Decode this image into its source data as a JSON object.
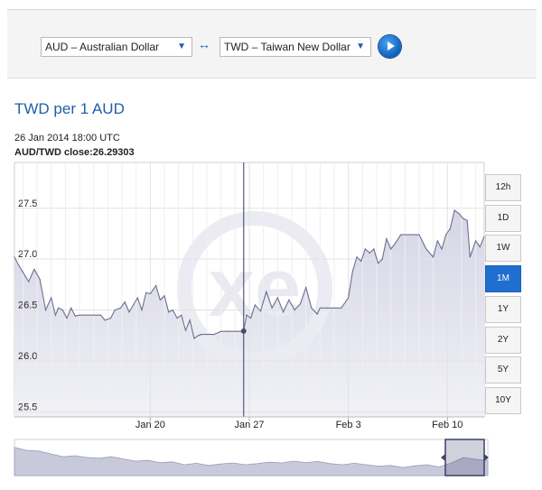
{
  "converter": {
    "from_currency": "AUD – Australian Dollar",
    "to_currency": "TWD – Taiwan New Dollar",
    "swap_symbol": "↔",
    "dropdown_arrow": "▼"
  },
  "page_title": "TWD per 1 AUD",
  "tooltip": {
    "timestamp": "26 Jan 2014 18:00 UTC",
    "pair_label": "AUD/TWD close:",
    "close_value": "26.29303"
  },
  "range_buttons": [
    {
      "label": "12h",
      "active": false
    },
    {
      "label": "1D",
      "active": false
    },
    {
      "label": "1W",
      "active": false
    },
    {
      "label": "1M",
      "active": true
    },
    {
      "label": "1Y",
      "active": false
    },
    {
      "label": "2Y",
      "active": false
    },
    {
      "label": "5Y",
      "active": false
    },
    {
      "label": "10Y",
      "active": false
    }
  ],
  "colors": {
    "accent": "#1f5fa8",
    "line": "#6c6f8c",
    "fill": "#dcdcea",
    "active_button": "#1f6fd0"
  },
  "chart_data": {
    "type": "area",
    "ylim": [
      25.45,
      27.95
    ],
    "y_ticks": [
      27.5,
      27.0,
      26.5,
      26.0,
      25.5
    ],
    "y_tick_labels": [
      "27.5",
      "27.0",
      "26.5",
      "26.0",
      "25.5"
    ],
    "x_tick_labels": [
      "Jan 20",
      "Jan 27",
      "Feb 3",
      "Feb 10"
    ],
    "x_tick_days": [
      0,
      7,
      14,
      21
    ],
    "xlim_days": [
      -9.6,
      23.6
    ],
    "crosshair_day": 6.6,
    "grid": true,
    "series": [
      {
        "x_days": [
          -9.6,
          -9.3,
          -9.0,
          -8.6,
          -8.2,
          -7.8,
          -7.4,
          -7.0,
          -6.7,
          -6.5,
          -6.2,
          -5.9,
          -5.6,
          -5.3,
          -5.0,
          -4.0,
          -3.5,
          -3.2,
          -2.8,
          -2.5,
          -2.1,
          -1.8,
          -1.5,
          -1.2,
          -0.9,
          -0.6,
          -0.3,
          0.0,
          0.4,
          0.7,
          1.0,
          1.3,
          1.6,
          1.9,
          2.2,
          2.5,
          2.8,
          3.1,
          3.4,
          3.6,
          4.0,
          4.5,
          5.0,
          5.5,
          6.0,
          6.6,
          6.8,
          7.1,
          7.4,
          7.8,
          8.2,
          8.6,
          9.0,
          9.4,
          9.8,
          10.2,
          10.6,
          11.0,
          11.4,
          11.8,
          12.0,
          12.5,
          13.0,
          13.5,
          14.0,
          14.3,
          14.6,
          14.9,
          15.2,
          15.5,
          15.8,
          16.1,
          16.4,
          16.7,
          17.0,
          17.3,
          17.7,
          18.0,
          18.5,
          19.0,
          19.5,
          20.0,
          20.3,
          20.6,
          20.9,
          21.2,
          21.5,
          21.8,
          22.1,
          22.4,
          22.6,
          23.0,
          23.3,
          23.6
        ],
        "values": [
          27.02,
          26.94,
          26.87,
          26.78,
          26.9,
          26.8,
          26.5,
          26.62,
          26.45,
          26.52,
          26.5,
          26.42,
          26.52,
          26.44,
          26.45,
          26.45,
          26.45,
          26.4,
          26.42,
          26.5,
          26.52,
          26.58,
          26.48,
          26.55,
          26.62,
          26.5,
          26.67,
          26.66,
          26.74,
          26.6,
          26.64,
          26.48,
          26.5,
          26.42,
          26.45,
          26.3,
          26.4,
          26.22,
          26.25,
          26.26,
          26.26,
          26.26,
          26.29,
          26.29,
          26.29,
          26.29,
          26.45,
          26.42,
          26.55,
          26.49,
          26.68,
          26.52,
          26.62,
          26.48,
          26.6,
          26.5,
          26.56,
          26.72,
          26.52,
          26.46,
          26.52,
          26.52,
          26.52,
          26.52,
          26.62,
          26.88,
          27.02,
          26.98,
          27.1,
          27.06,
          27.1,
          26.96,
          27.0,
          27.2,
          27.1,
          27.15,
          27.24,
          27.24,
          27.24,
          27.24,
          27.1,
          27.02,
          27.18,
          27.1,
          27.24,
          27.3,
          27.48,
          27.45,
          27.4,
          27.38,
          27.02,
          27.18,
          27.12,
          27.22
        ]
      }
    ],
    "navigator_values": [
      0.78,
      0.7,
      0.68,
      0.6,
      0.52,
      0.55,
      0.5,
      0.48,
      0.52,
      0.46,
      0.4,
      0.42,
      0.36,
      0.38,
      0.3,
      0.34,
      0.28,
      0.32,
      0.35,
      0.3,
      0.33,
      0.37,
      0.35,
      0.4,
      0.36,
      0.39,
      0.33,
      0.3,
      0.34,
      0.3,
      0.26,
      0.28,
      0.22,
      0.27,
      0.3,
      0.24,
      0.35,
      0.5,
      0.45,
      0.42
    ]
  }
}
